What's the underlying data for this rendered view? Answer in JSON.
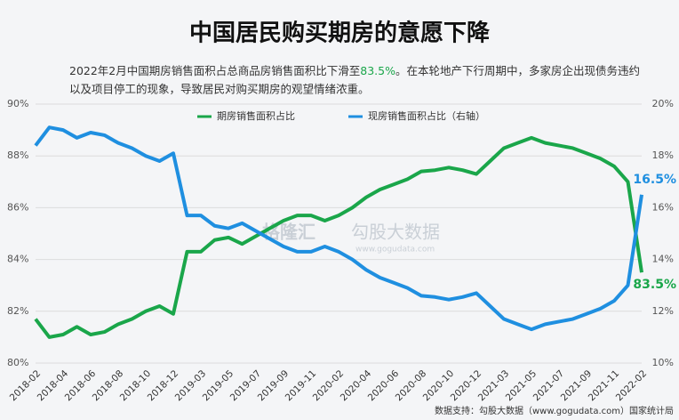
{
  "chart_data": {
    "type": "line",
    "title": "中国居民购买期房的意愿下降",
    "subtitle_segments": [
      "2022年2月中国期房销售面积占总商品房销售面积比下滑至",
      "83.5%",
      "。在本轮地产下行周期中，多家房企出现债务违约",
      "以及项目停工的现象，导致居民对购买期房的观望情绪浓重。"
    ],
    "watermark": [
      "格隆汇",
      "勾股大数据",
      "www.gogudata.com"
    ],
    "source": "数据支持：勾股大数据（www.gogudata.com）国家统计局",
    "categories": [
      "2018-02",
      null,
      "2018-04",
      null,
      "2018-06",
      null,
      "2018-08",
      null,
      "2018-10",
      null,
      "2018-12",
      null,
      "2019-03",
      null,
      "2019-05",
      null,
      "2019-07",
      null,
      "2019-09",
      null,
      "2019-11",
      null,
      "2020-02",
      null,
      "2020-04",
      null,
      "2020-06",
      null,
      "2020-08",
      null,
      "2020-10",
      null,
      "2020-12",
      null,
      "2021-03",
      null,
      "2021-05",
      null,
      "2021-07",
      null,
      "2021-09",
      null,
      "2021-11",
      null,
      "2022-02"
    ],
    "series": [
      {
        "name": "期房销售面积占比",
        "color": "#1aa64a",
        "axis": "y",
        "values": [
          81.7,
          81.0,
          81.1,
          81.4,
          81.1,
          81.2,
          81.5,
          81.7,
          82.0,
          82.2,
          81.9,
          84.3,
          84.3,
          84.75,
          84.85,
          84.6,
          84.9,
          85.2,
          85.5,
          85.7,
          85.7,
          85.5,
          85.7,
          86.0,
          86.4,
          86.7,
          86.9,
          87.1,
          87.4,
          87.45,
          87.55,
          87.45,
          87.3,
          87.8,
          88.3,
          88.5,
          88.7,
          88.5,
          88.4,
          88.3,
          88.1,
          87.9,
          87.6,
          87.0,
          83.5
        ],
        "value_labels": [
          null,
          null,
          null,
          null,
          null,
          null,
          null,
          null,
          null,
          null,
          null,
          null,
          null,
          null,
          null,
          null,
          null,
          null,
          null,
          null,
          null,
          null,
          null,
          null,
          null,
          null,
          null,
          null,
          null,
          null,
          null,
          null,
          null,
          null,
          null,
          null,
          null,
          null,
          null,
          null,
          null,
          null,
          null,
          null,
          "83.5%"
        ]
      },
      {
        "name": "现房销售面积占比（右轴）",
        "color": "#1f8fe0",
        "axis": "y2",
        "values": [
          18.4,
          19.1,
          19.0,
          18.7,
          18.9,
          18.8,
          18.5,
          18.3,
          18.0,
          17.8,
          18.1,
          15.7,
          15.7,
          15.3,
          15.2,
          15.4,
          15.1,
          14.8,
          14.5,
          14.3,
          14.3,
          14.5,
          14.3,
          14.0,
          13.6,
          13.3,
          13.1,
          12.9,
          12.6,
          12.55,
          12.45,
          12.55,
          12.7,
          12.2,
          11.7,
          11.5,
          11.3,
          11.5,
          11.6,
          11.7,
          11.9,
          12.1,
          12.4,
          13.0,
          16.5
        ],
        "value_labels": [
          null,
          null,
          null,
          null,
          null,
          null,
          null,
          null,
          null,
          null,
          null,
          null,
          null,
          null,
          null,
          null,
          null,
          null,
          null,
          null,
          null,
          null,
          null,
          null,
          null,
          null,
          null,
          null,
          null,
          null,
          null,
          null,
          null,
          null,
          null,
          null,
          null,
          null,
          null,
          null,
          null,
          null,
          null,
          null,
          "16.5%"
        ]
      }
    ],
    "ylim": [
      80,
      90
    ],
    "yticks": [
      {
        "value": 80,
        "label": "80%"
      },
      {
        "value": 82,
        "label": "82%"
      },
      {
        "value": 84,
        "label": "84%"
      },
      {
        "value": 86,
        "label": "86%"
      },
      {
        "value": 88,
        "label": "88%"
      },
      {
        "value": 90,
        "label": "90%"
      }
    ],
    "y2lim": [
      10,
      20
    ],
    "y2ticks": [
      {
        "value": 10,
        "label": "10%"
      },
      {
        "value": 12,
        "label": "12%"
      },
      {
        "value": 14,
        "label": "14%"
      },
      {
        "value": 16,
        "label": "16%"
      },
      {
        "value": 18,
        "label": "18%"
      },
      {
        "value": 20,
        "label": "20%"
      }
    ],
    "grid": true
  }
}
